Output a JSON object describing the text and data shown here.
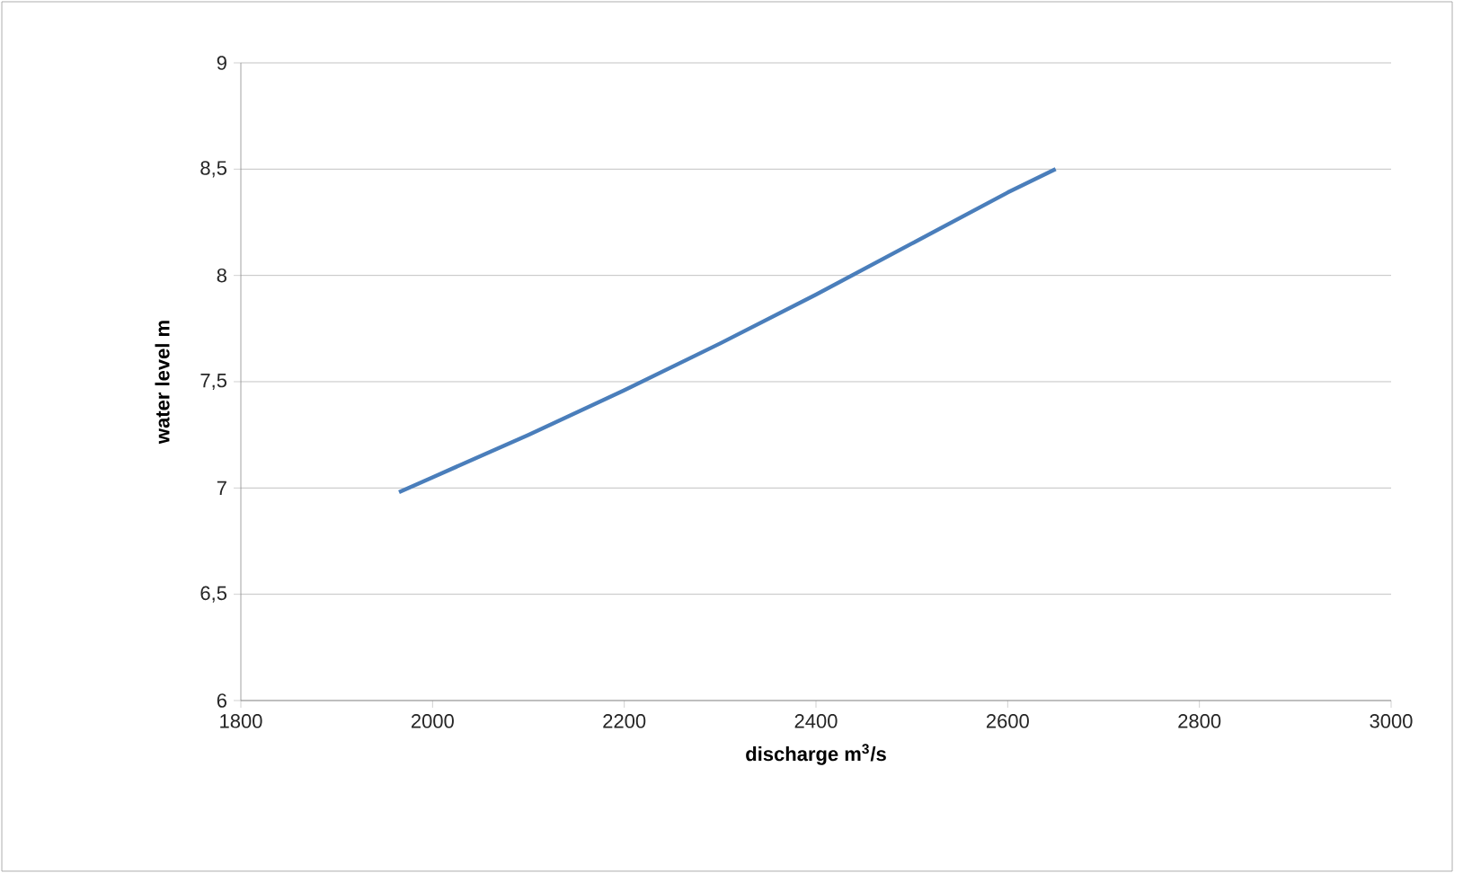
{
  "chart_data": {
    "type": "line",
    "xlabel": "discharge m$^{3}$/s",
    "ylabel": "water level m",
    "x": [
      1965,
      2000,
      2100,
      2200,
      2300,
      2400,
      2500,
      2600,
      2650
    ],
    "series": [
      {
        "color": "#4a7ebb",
        "values": [
          6.98,
          7.05,
          7.25,
          7.46,
          7.68,
          7.91,
          8.15,
          8.39,
          8.5
        ]
      }
    ],
    "xlim": [
      1800,
      3000
    ],
    "xticks": [
      1800,
      2000,
      2200,
      2400,
      2600,
      2800,
      3000
    ],
    "ylim": [
      6,
      9
    ],
    "yticks": [
      6,
      {
        "value": 6.5,
        "label": "6,5"
      },
      7,
      {
        "value": 7.5,
        "label": "7,5"
      },
      8,
      {
        "value": 8.5,
        "label": "8,5"
      },
      9
    ],
    "grid": "y",
    "marker": "none",
    "line_style": "solid"
  }
}
